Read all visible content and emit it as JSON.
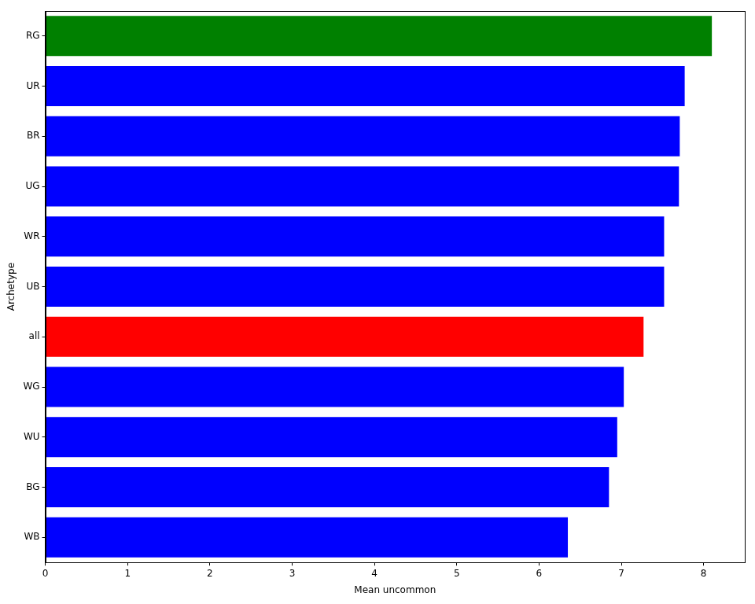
{
  "chart_data": {
    "type": "bar",
    "orientation": "horizontal",
    "x_label": "Mean uncommon",
    "y_label": "Archetype",
    "categories": [
      "RG",
      "UR",
      "BR",
      "UG",
      "WR",
      "UB",
      "all",
      "WG",
      "WU",
      "BG",
      "WB"
    ],
    "values": [
      8.1,
      7.77,
      7.71,
      7.7,
      7.52,
      7.52,
      7.27,
      7.03,
      6.95,
      6.85,
      6.35
    ],
    "colors": [
      "#008000",
      "#0000ff",
      "#0000ff",
      "#0000ff",
      "#0000ff",
      "#0000ff",
      "#ff0000",
      "#0000ff",
      "#0000ff",
      "#0000ff",
      "#0000ff"
    ],
    "xlim": [
      0,
      8.5
    ],
    "xticks": [
      0,
      1,
      2,
      3,
      4,
      5,
      6,
      7,
      8
    ],
    "grid": false
  }
}
